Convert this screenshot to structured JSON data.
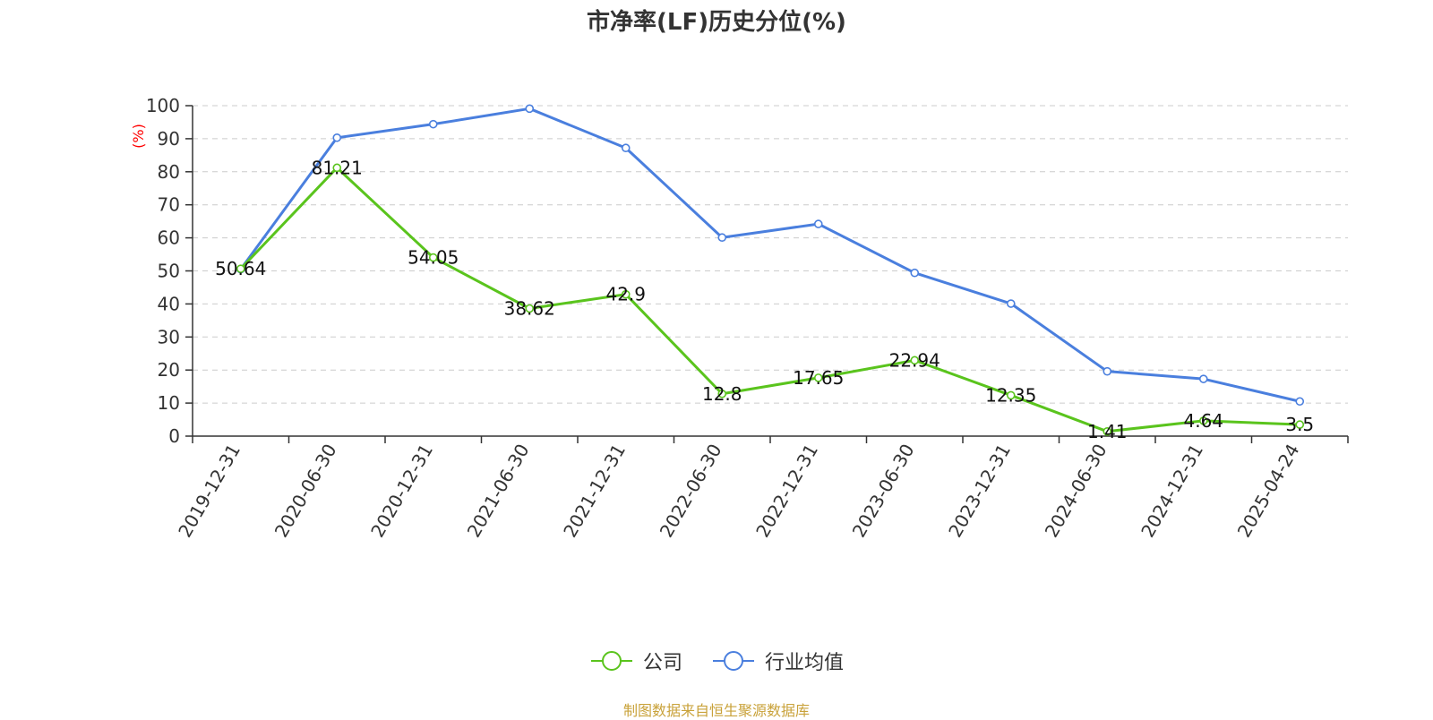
{
  "chart_data": {
    "type": "line",
    "title": "市净率(LF)历史分位(%)",
    "ylabel": "(%)",
    "ylim": [
      0,
      100
    ],
    "yticks": [
      0,
      10,
      20,
      30,
      40,
      50,
      60,
      70,
      80,
      90,
      100
    ],
    "grid": true,
    "legend_position": "bottom-center",
    "categories": [
      "2019-12-31",
      "2020-06-30",
      "2020-12-31",
      "2021-06-30",
      "2021-12-31",
      "2022-06-30",
      "2022-12-31",
      "2023-06-30",
      "2023-12-31",
      "2024-06-30",
      "2024-12-31",
      "2025-04-24"
    ],
    "series": [
      {
        "name": "公司",
        "color": "#5ac41d",
        "values": [
          50.64,
          81.21,
          54.05,
          38.62,
          42.9,
          12.8,
          17.65,
          22.94,
          12.35,
          1.41,
          4.64,
          3.5
        ],
        "data_labels": [
          "50.64",
          "81.21",
          "54.05",
          "38.62",
          "42.9",
          "12.8",
          "17.65",
          "22.94",
          "12.35",
          "1.41",
          "4.64",
          "3.5"
        ]
      },
      {
        "name": "行业均值",
        "color": "#4a7fde",
        "values": [
          50.5,
          90.3,
          94.4,
          99.1,
          87.2,
          60.1,
          64.2,
          49.4,
          40.1,
          19.6,
          17.3,
          10.5
        ]
      }
    ]
  },
  "source_note": "制图数据来自恒生聚源数据库"
}
